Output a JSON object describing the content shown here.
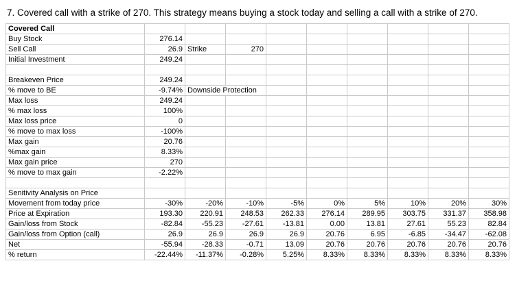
{
  "title": {
    "text": "7. Covered call with a strike of 270. This strategy means buying a stock today and selling a call with a strike of 270."
  },
  "table": {
    "column_count": 10,
    "rows": [
      [
        {
          "v": "Covered Call",
          "bold": true
        },
        "",
        "",
        "",
        "",
        "",
        "",
        "",
        "",
        ""
      ],
      [
        "Buy Stock",
        "276.14",
        "",
        "",
        "",
        "",
        "",
        "",
        "",
        ""
      ],
      [
        "Sell Call",
        "26.9",
        {
          "v": "Strike",
          "align": "left"
        },
        "270",
        "",
        "",
        "",
        "",
        "",
        ""
      ],
      [
        "Initial Investment",
        "249.24",
        "",
        "",
        "",
        "",
        "",
        "",
        "",
        ""
      ],
      [
        "",
        "",
        "",
        "",
        "",
        "",
        "",
        "",
        "",
        ""
      ],
      [
        "Breakeven Price",
        "249.24",
        "",
        "",
        "",
        "",
        "",
        "",
        "",
        ""
      ],
      [
        "% move to BE",
        "-9.74%",
        {
          "v": "Downside Protection",
          "align": "left",
          "span": 2
        },
        "",
        "",
        "",
        "",
        "",
        ""
      ],
      [
        "Max loss",
        "249.24",
        "",
        "",
        "",
        "",
        "",
        "",
        "",
        ""
      ],
      [
        "% max loss",
        "100%",
        "",
        "",
        "",
        "",
        "",
        "",
        "",
        ""
      ],
      [
        "Max loss price",
        "0",
        "",
        "",
        "",
        "",
        "",
        "",
        "",
        ""
      ],
      [
        "% move to max loss",
        "-100%",
        "",
        "",
        "",
        "",
        "",
        "",
        "",
        ""
      ],
      [
        "Max gain",
        "20.76",
        "",
        "",
        "",
        "",
        "",
        "",
        "",
        ""
      ],
      [
        "%max gain",
        "8.33%",
        "",
        "",
        "",
        "",
        "",
        "",
        "",
        ""
      ],
      [
        "Max gain price",
        "270",
        "",
        "",
        "",
        "",
        "",
        "",
        "",
        ""
      ],
      [
        "% move to max gain",
        "-2.22%",
        "",
        "",
        "",
        "",
        "",
        "",
        "",
        ""
      ],
      [
        "",
        "",
        "",
        "",
        "",
        "",
        "",
        "",
        "",
        ""
      ],
      [
        "Senitivity Analysis on Price",
        "",
        "",
        "",
        "",
        "",
        "",
        "",
        "",
        ""
      ],
      [
        "Movement from today price",
        "-30%",
        "-20%",
        "-10%",
        "-5%",
        "0%",
        "5%",
        "10%",
        "20%",
        "30%"
      ],
      [
        "Price at Expiration",
        "193.30",
        "220.91",
        "248.53",
        "262.33",
        "276.14",
        "289.95",
        "303.75",
        "331.37",
        "358.98"
      ],
      [
        "Gain/loss from Stock",
        "-82.84",
        "-55.23",
        "-27.61",
        "-13.81",
        "0.00",
        "13.81",
        "27.61",
        "55.23",
        "82.84"
      ],
      [
        "Gain/loss from Option (call)",
        "26.9",
        "26.9",
        "26.9",
        "26.9",
        "20.76",
        "6.95",
        "-6.85",
        "-34.47",
        "-62.08"
      ],
      [
        "Net",
        "-55.94",
        "-28.33",
        "-0.71",
        "13.09",
        "20.76",
        "20.76",
        "20.76",
        "20.76",
        "20.76"
      ],
      [
        "% return",
        "-22.44%",
        "-11.37%",
        "-0.28%",
        "5.25%",
        "8.33%",
        "8.33%",
        "8.33%",
        "8.33%",
        "8.33%"
      ]
    ]
  }
}
